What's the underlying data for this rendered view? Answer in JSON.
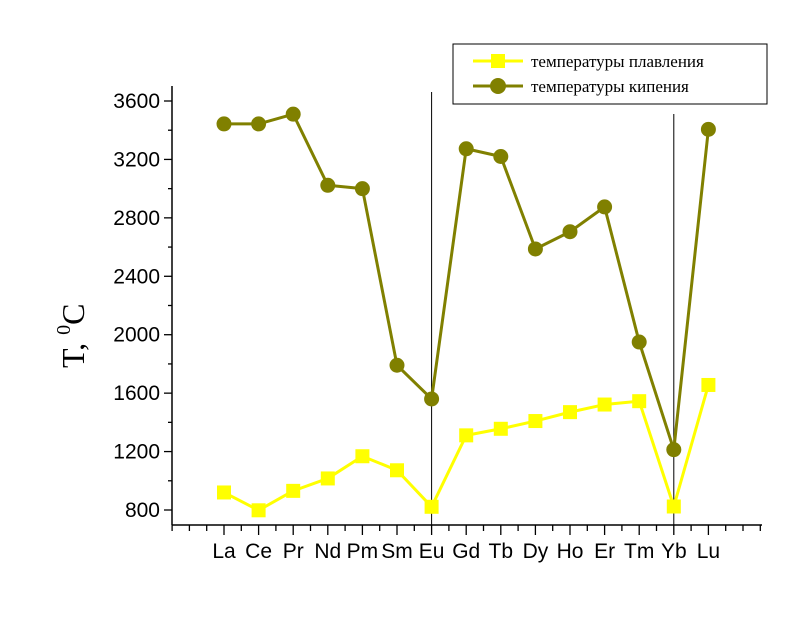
{
  "chart_data": {
    "type": "line",
    "title": "",
    "ylabel": {
      "main": "T, ",
      "sup": "0",
      "unit": "C"
    },
    "xlabel": "",
    "categories": [
      "La",
      "Ce",
      "Pr",
      "Nd",
      "Pm",
      "Sm",
      "Eu",
      "Gd",
      "Tb",
      "Dy",
      "Ho",
      "Er",
      "Tm",
      "Yb",
      "Lu"
    ],
    "yticks": [
      "800",
      "1200",
      "1600",
      "2000",
      "2400",
      "2800",
      "3200",
      "3600"
    ],
    "ylim": [
      700,
      3700
    ],
    "grid": false,
    "legend_position": "top-right",
    "vertical_markers": [
      "Eu",
      "Yb"
    ],
    "series": [
      {
        "name": "температуры плавления",
        "color": "#ffff00",
        "marker": "square",
        "values": [
          920,
          798,
          931,
          1016,
          1168,
          1072,
          822,
          1311,
          1356,
          1409,
          1470,
          1522,
          1545,
          824,
          1656
        ]
      },
      {
        "name": "температуры кипения",
        "color": "#808000",
        "marker": "circle",
        "values": [
          3443,
          3443,
          3510,
          3023,
          3000,
          1791,
          1560,
          3273,
          3220,
          2587,
          2705,
          2875,
          1950,
          1213,
          3406
        ]
      }
    ]
  }
}
